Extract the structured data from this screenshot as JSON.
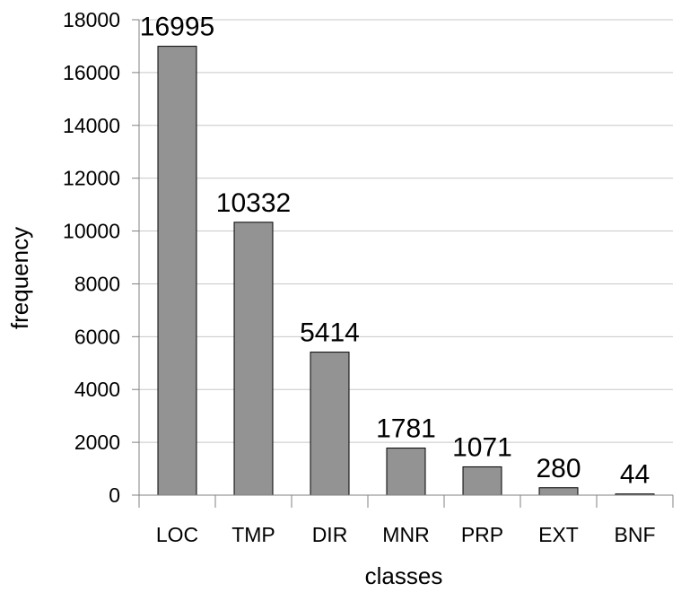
{
  "chart_data": {
    "type": "bar",
    "categories": [
      "LOC",
      "TMP",
      "DIR",
      "MNR",
      "PRP",
      "EXT",
      "BNF"
    ],
    "values": [
      16995,
      10332,
      5414,
      1781,
      1071,
      280,
      44
    ],
    "data_labels": [
      "16995",
      "10332",
      "5414",
      "1781",
      "1071",
      "280",
      "44"
    ],
    "xlabel": "classes",
    "ylabel": "frequency",
    "ylim": [
      0,
      18000
    ],
    "yticks": [
      0,
      2000,
      4000,
      6000,
      8000,
      10000,
      12000,
      14000,
      16000,
      18000
    ],
    "ytick_labels": [
      "0",
      "2000",
      "4000",
      "6000",
      "8000",
      "10000",
      "12000",
      "14000",
      "16000",
      "18000"
    ],
    "grid": true,
    "legend": "none",
    "colors": {
      "bar_fill": "#939393",
      "bar_stroke": "#000000",
      "grid": "#c8c8c8",
      "axis": "#808080"
    }
  }
}
